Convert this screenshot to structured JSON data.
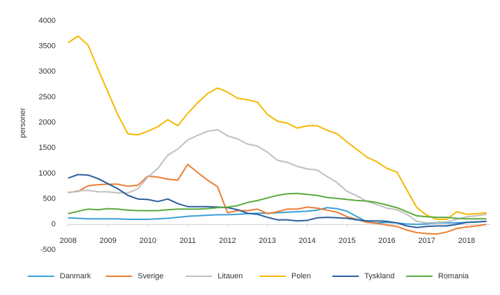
{
  "chart_data": {
    "type": "line",
    "y_label": "personer",
    "x": [
      2008,
      2008.25,
      2008.5,
      2008.75,
      2009,
      2009.25,
      2009.5,
      2009.75,
      2010,
      2010.25,
      2010.5,
      2010.75,
      2011,
      2011.25,
      2011.5,
      2011.75,
      2012,
      2012.25,
      2012.5,
      2012.75,
      2013,
      2013.25,
      2013.5,
      2013.75,
      2014,
      2014.25,
      2014.5,
      2014.75,
      2015,
      2015.25,
      2015.5,
      2015.75,
      2016,
      2016.25,
      2016.5,
      2016.75,
      2017,
      2017.25,
      2017.5,
      2017.75,
      2018,
      2018.25,
      2018.5
    ],
    "xlim": [
      2008,
      2018.6
    ],
    "xticks": [
      2008,
      2009,
      2010,
      2011,
      2012,
      2013,
      2014,
      2015,
      2016,
      2017,
      2018
    ],
    "ylim": [
      -500,
      4000
    ],
    "yticks": [
      -500,
      0,
      500,
      1000,
      1500,
      2000,
      2500,
      3000,
      3500,
      4000
    ],
    "legend": "bottom",
    "series": [
      {
        "name": "Danmark",
        "color": "#3a9fd8",
        "values": [
          130,
          120,
          110,
          110,
          110,
          110,
          100,
          100,
          100,
          110,
          120,
          140,
          160,
          170,
          180,
          190,
          190,
          200,
          210,
          220,
          220,
          230,
          240,
          250,
          260,
          280,
          330,
          310,
          260,
          150,
          50,
          30,
          40,
          30,
          10,
          0,
          10,
          30,
          30,
          30,
          40,
          50,
          60
        ]
      },
      {
        "name": "Sverige",
        "color": "#ed7d31",
        "values": [
          630,
          650,
          760,
          780,
          790,
          790,
          750,
          770,
          950,
          930,
          890,
          870,
          1180,
          1020,
          870,
          740,
          230,
          270,
          270,
          300,
          210,
          250,
          300,
          300,
          340,
          320,
          280,
          240,
          150,
          100,
          40,
          20,
          -10,
          -40,
          -110,
          -160,
          -180,
          -190,
          -150,
          -80,
          -50,
          -30,
          0
        ]
      },
      {
        "name": "Litauen",
        "color": "#bfbfbf",
        "values": [
          620,
          660,
          670,
          640,
          640,
          620,
          620,
          700,
          930,
          1100,
          1360,
          1480,
          1660,
          1750,
          1830,
          1860,
          1740,
          1680,
          1580,
          1540,
          1420,
          1260,
          1220,
          1140,
          1090,
          1070,
          940,
          820,
          650,
          560,
          450,
          390,
          320,
          290,
          200,
          60,
          30,
          40,
          50,
          100,
          150,
          170,
          200
        ]
      },
      {
        "name": "Polen",
        "color": "#f5b800",
        "values": [
          3570,
          3700,
          3520,
          3050,
          2600,
          2150,
          1780,
          1760,
          1830,
          1920,
          2060,
          1940,
          2180,
          2390,
          2570,
          2680,
          2600,
          2480,
          2450,
          2400,
          2160,
          2030,
          1990,
          1890,
          1940,
          1940,
          1850,
          1780,
          1620,
          1470,
          1320,
          1230,
          1100,
          1030,
          680,
          330,
          180,
          100,
          100,
          250,
          200,
          210,
          230
        ]
      },
      {
        "name": "Tyskland",
        "color": "#2a5f9e",
        "values": [
          910,
          980,
          970,
          900,
          800,
          700,
          570,
          500,
          490,
          450,
          500,
          410,
          350,
          350,
          350,
          340,
          330,
          290,
          220,
          200,
          140,
          90,
          90,
          70,
          80,
          130,
          140,
          130,
          120,
          90,
          70,
          70,
          60,
          30,
          -30,
          -60,
          -40,
          -30,
          -30,
          0,
          40,
          50,
          60
        ]
      },
      {
        "name": "Romania",
        "color": "#5aaa3c",
        "values": [
          210,
          260,
          300,
          290,
          310,
          300,
          280,
          270,
          270,
          270,
          290,
          300,
          300,
          300,
          310,
          330,
          340,
          370,
          430,
          470,
          520,
          570,
          600,
          610,
          590,
          570,
          530,
          510,
          490,
          470,
          460,
          430,
          380,
          330,
          250,
          170,
          150,
          140,
          140,
          120,
          110,
          110,
          110
        ]
      }
    ]
  }
}
